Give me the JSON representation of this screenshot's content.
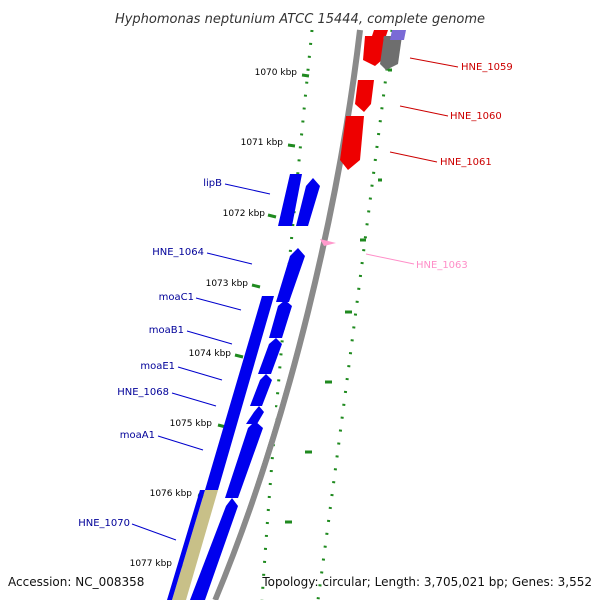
{
  "title": "Hyphomonas neptunium ATCC 15444, complete genome",
  "footer": {
    "accession": "Accession: NC_008358",
    "summary": "Topology: circular; Length: 3,705,021 bp; Genes: 3,552"
  },
  "scale_labels": [
    "1070 kbp",
    "1071 kbp",
    "1072 kbp",
    "1073 kbp",
    "1074 kbp",
    "1075 kbp",
    "1076 kbp",
    "1077 kbp"
  ],
  "reverse_genes": [
    {
      "label": "HNE_1059",
      "color": "#cc0000"
    },
    {
      "label": "HNE_1060",
      "color": "#cc0000"
    },
    {
      "label": "HNE_1061",
      "color": "#cc0000"
    },
    {
      "label": "HNE_1063",
      "color": "#ff8ec8"
    }
  ],
  "forward_genes": [
    {
      "label": "lipB",
      "color": "#000099"
    },
    {
      "label": "HNE_1064",
      "color": "#000099"
    },
    {
      "label": "moaC1",
      "color": "#000099"
    },
    {
      "label": "moaB1",
      "color": "#000099"
    },
    {
      "label": "moaE1",
      "color": "#000099"
    },
    {
      "label": "HNE_1068",
      "color": "#000099"
    },
    {
      "label": "moaA1",
      "color": "#000099"
    },
    {
      "label": "HNE_1070",
      "color": "#000099"
    }
  ],
  "colors": {
    "forward_cds": "#0000ee",
    "reverse_cds": "#ee0000",
    "gray_cds": "#6e6e6e",
    "pseudo_cds": "#ff99cc",
    "khaki_feature": "#c8c088",
    "tick_green": "#1f8a1f",
    "backbone": "#8a8a8a"
  }
}
